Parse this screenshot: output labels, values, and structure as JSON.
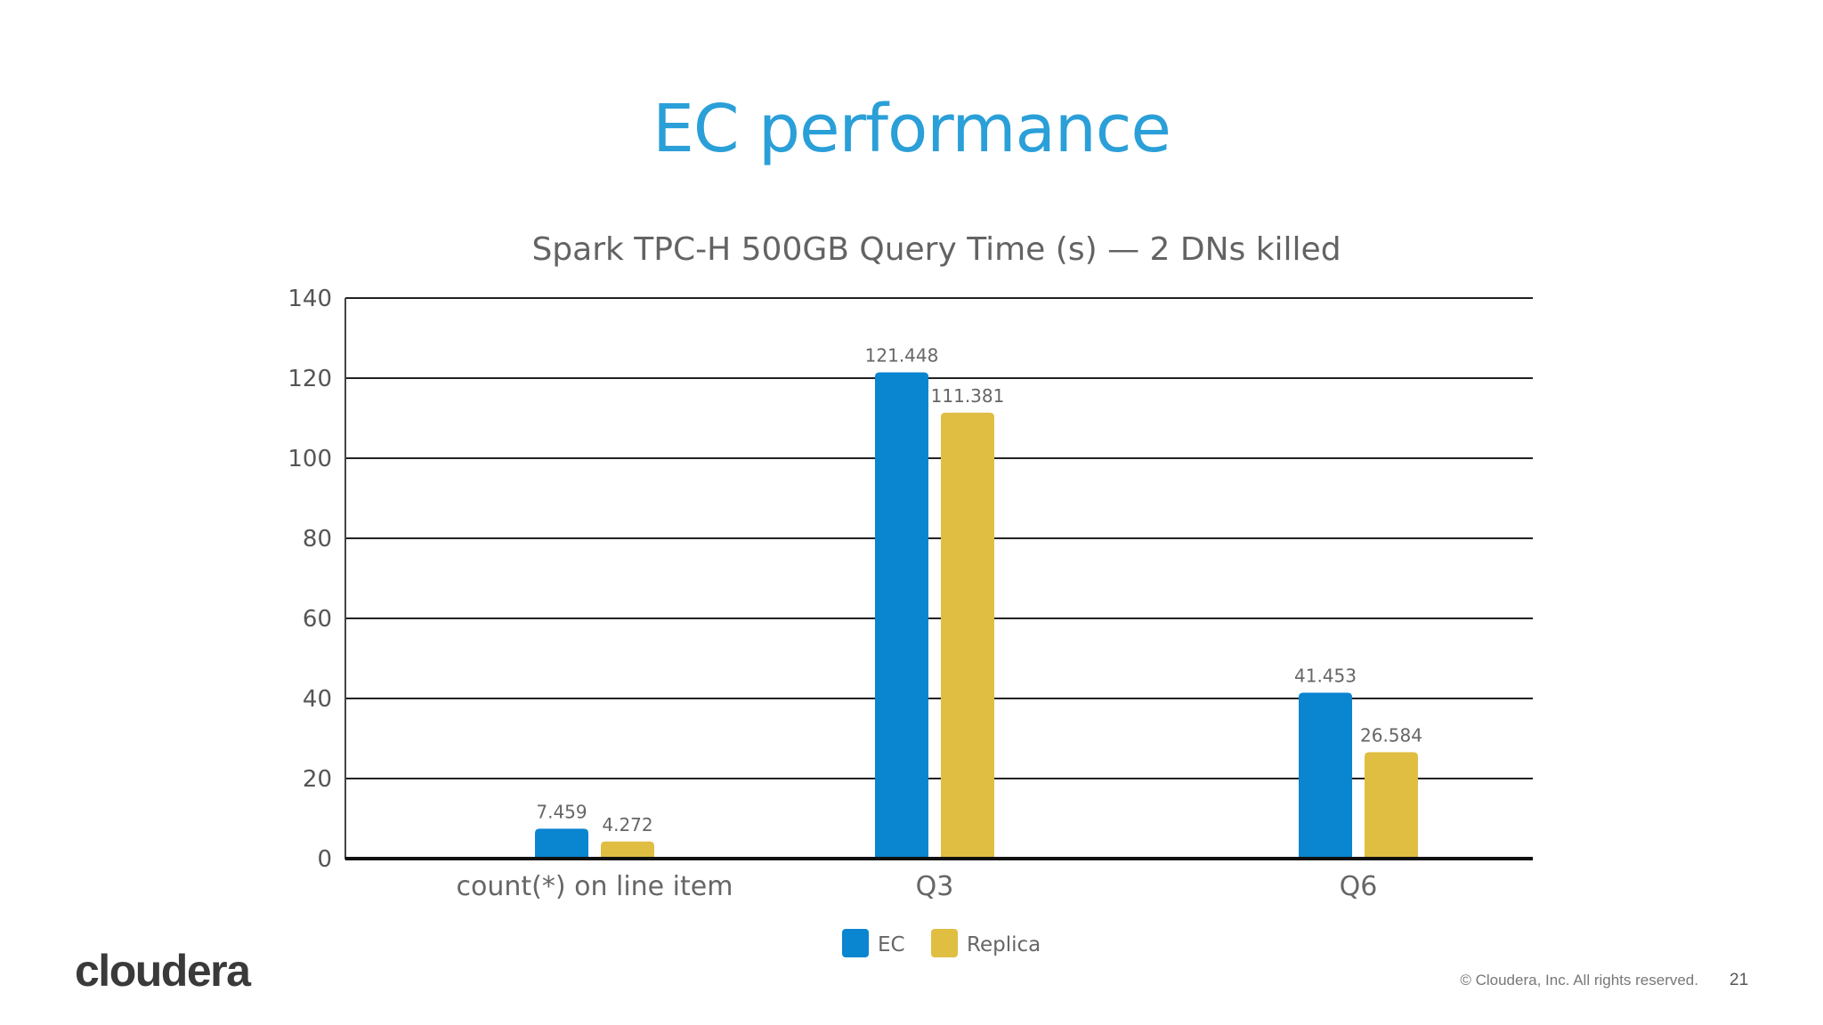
{
  "slide": {
    "title": "EC performance",
    "logo": "cloudera",
    "copyright": "© Cloudera, Inc. All rights reserved.",
    "page_number": "21"
  },
  "colors": {
    "title": "#2a9fd8",
    "ec": "#0a85d0",
    "replica": "#dfbe42",
    "gridline": "#222222"
  },
  "chart_data": {
    "type": "bar",
    "title": "Spark TPC-H 500GB Query Time (s) — 2 DNs killed",
    "xlabel": "",
    "ylabel": "",
    "categories": [
      "count(*) on line item",
      "Q3",
      "Q6"
    ],
    "series": [
      {
        "name": "EC",
        "values": [
          7.459,
          121.448,
          41.453
        ],
        "labels": [
          "7.459",
          "121.448",
          "41.453"
        ]
      },
      {
        "name": "Replica",
        "values": [
          4.272,
          111.381,
          26.584
        ],
        "labels": [
          "4.272",
          "111.381",
          "26.584"
        ]
      }
    ],
    "ylim": [
      0,
      140
    ],
    "yticks": [
      "0",
      "20",
      "40",
      "60",
      "80",
      "100",
      "120",
      "140"
    ],
    "grid": true,
    "legend": "bottom",
    "data_labels": true
  }
}
